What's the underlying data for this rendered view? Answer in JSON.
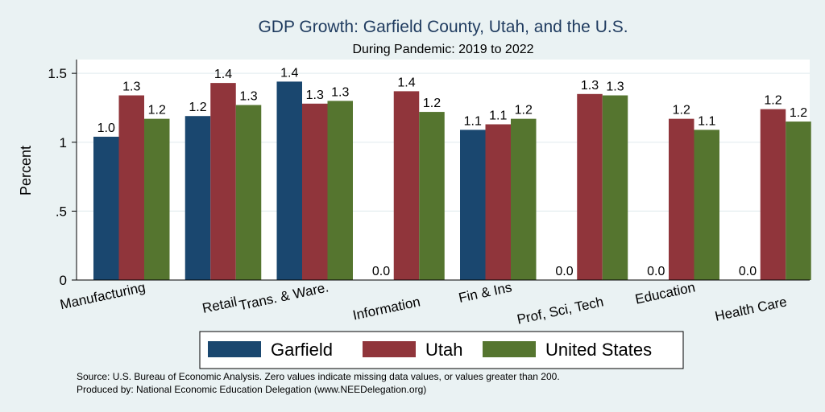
{
  "chart_data": {
    "type": "bar",
    "title": "GDP Growth: Garfield County, Utah, and the U.S.",
    "subtitle": "During Pandemic: 2019 to 2022",
    "ylabel": "Percent",
    "xlabel": "",
    "ylim": [
      0,
      1.6
    ],
    "yticks": [
      {
        "value": 0,
        "label": "0"
      },
      {
        "value": 0.5,
        "label": ".5"
      },
      {
        "value": 1,
        "label": "1"
      },
      {
        "value": 1.5,
        "label": "1.5"
      }
    ],
    "grid": true,
    "legend_position": "bottom",
    "categories": [
      "Manufacturing",
      "Retail",
      "Trans. & Ware.",
      "Information",
      "Fin & Ins",
      "Prof, Sci, Tech",
      "Education",
      "Health Care"
    ],
    "series": [
      {
        "name": "Garfield",
        "color": "#1a476f",
        "values": [
          1.04,
          1.19,
          1.44,
          0,
          1.09,
          0,
          0,
          0
        ],
        "labels": [
          "1.0",
          "1.2",
          "1.4",
          "0.0",
          "1.1",
          "0.0",
          "0.0",
          "0.0"
        ]
      },
      {
        "name": "Utah",
        "color": "#90353b",
        "values": [
          1.34,
          1.43,
          1.28,
          1.37,
          1.13,
          1.35,
          1.17,
          1.24
        ],
        "labels": [
          "1.3",
          "1.4",
          "1.3",
          "1.4",
          "1.1",
          "1.3",
          "1.2",
          "1.2"
        ]
      },
      {
        "name": "United States",
        "color": "#55752f",
        "values": [
          1.17,
          1.27,
          1.3,
          1.22,
          1.17,
          1.34,
          1.09,
          1.15
        ],
        "labels": [
          "1.2",
          "1.3",
          "1.3",
          "1.2",
          "1.2",
          "1.3",
          "1.1",
          "1.2"
        ]
      }
    ]
  },
  "footer": {
    "source": "Source: U.S. Bureau of Economic Analysis. Zero values indicate missing data values, or values greater than 200.",
    "produced_by": "Produced by: National Economic Education Delegation (www.NEEDelegation.org)"
  }
}
